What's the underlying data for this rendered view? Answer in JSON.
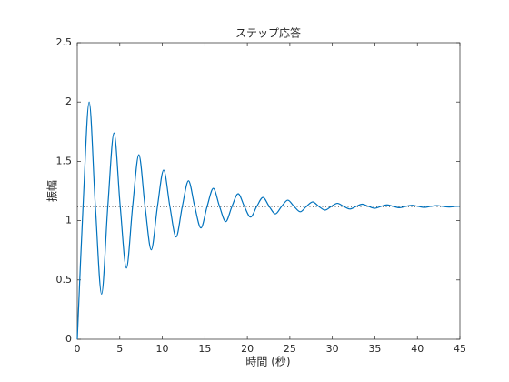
{
  "chart_data": {
    "type": "line",
    "title": "ステップ応答",
    "x_label": "時間 (秒)",
    "y_label": "振幅",
    "x": [
      0,
      0.68,
      1.4,
      2.13,
      2.86,
      3.59,
      4.32,
      5.05,
      5.78,
      6.51,
      7.24,
      7.97,
      8.7,
      9.43,
      10.16,
      10.89,
      11.62,
      12.35,
      13.08,
      13.81,
      14.54,
      15.27,
      16,
      16.73,
      17.46,
      18.19,
      18.92,
      19.65,
      20.38,
      21.11,
      21.84,
      22.57,
      23.3,
      24.03,
      24.76,
      25.49,
      26.22,
      26.95,
      27.68,
      28.41,
      29.14,
      29.87,
      30.6,
      31.33,
      32.06,
      32.79,
      33.52,
      34.25,
      34.98,
      35.71,
      36.44,
      37.17,
      37.9,
      38.63,
      39.36,
      40.09,
      40.82,
      41.55,
      42.28,
      43.01,
      43.74,
      44.47,
      45
    ],
    "values": [
      0,
      1.12,
      2,
      1.12,
      0.38,
      1.12,
      1.74,
      1.12,
      0.6,
      1.12,
      1.556,
      1.12,
      0.754,
      1.12,
      1.427,
      1.12,
      0.862,
      1.12,
      1.336,
      1.12,
      0.938,
      1.12,
      1.272,
      1.12,
      0.992,
      1.12,
      1.227,
      1.12,
      1.03,
      1.12,
      1.196,
      1.12,
      1.057,
      1.12,
      1.173,
      1.12,
      1.075,
      1.12,
      1.158,
      1.12,
      1.089,
      1.12,
      1.146,
      1.12,
      1.098,
      1.12,
      1.139,
      1.12,
      1.104,
      1.12,
      1.133,
      1.12,
      1.109,
      1.12,
      1.129,
      1.12,
      1.112,
      1.12,
      1.127,
      1.12,
      1.115,
      1.12,
      1.122
    ],
    "color": "#0072bd",
    "reference_line": 1.12,
    "xlim": [
      0,
      45
    ],
    "xticks": [
      0,
      5,
      10,
      15,
      20,
      25,
      30,
      35,
      40,
      45
    ],
    "ylim": [
      0,
      2.5
    ],
    "yticks": [
      0,
      0.5,
      1,
      1.5,
      2,
      2.5
    ]
  }
}
